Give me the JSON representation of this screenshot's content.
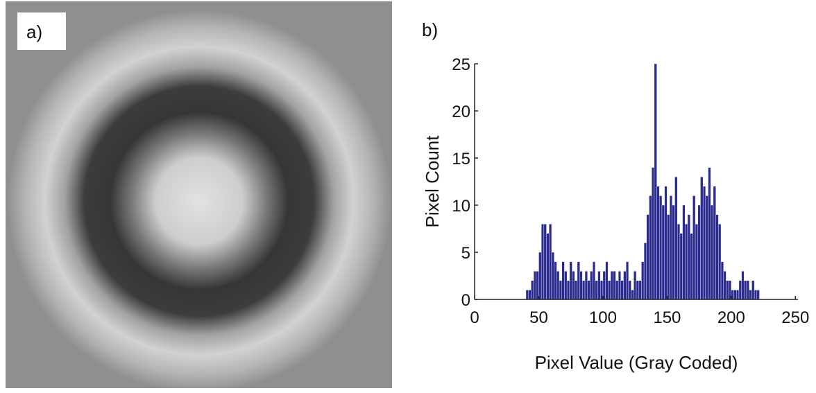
{
  "image_panel": {
    "label": "a)"
  },
  "chart_data": {
    "type": "histogram",
    "panel_label": "b)",
    "xlabel": "Pixel Value (Gray Coded)",
    "ylabel": "Pixel Count",
    "color": "#2b2b8f",
    "bins": [
      38,
      40,
      42,
      44,
      46,
      48,
      50,
      52,
      54,
      56,
      58,
      60,
      62,
      64,
      66,
      68,
      70,
      72,
      74,
      76,
      78,
      80,
      82,
      84,
      86,
      88,
      90,
      92,
      94,
      96,
      98,
      100,
      102,
      104,
      106,
      108,
      110,
      112,
      114,
      116,
      118,
      120,
      122,
      124,
      126,
      128,
      130,
      132,
      134,
      136,
      138,
      140,
      142,
      144,
      146,
      148,
      150,
      152,
      154,
      156,
      158,
      160,
      162,
      164,
      166,
      168,
      170,
      172,
      174,
      176,
      178,
      180,
      182,
      184,
      186,
      188,
      190,
      192,
      194,
      196,
      198,
      200,
      202,
      204,
      206,
      208,
      210,
      212,
      214,
      216,
      218,
      220,
      222,
      224
    ],
    "values": [
      0,
      1,
      1,
      2,
      3,
      3,
      5,
      8,
      8,
      7,
      8,
      5,
      4,
      3,
      2,
      4,
      3,
      2,
      4,
      3,
      2,
      4,
      3,
      2,
      3,
      2,
      3,
      4,
      2,
      3,
      2,
      3,
      4,
      2,
      3,
      3,
      2,
      3,
      2,
      3,
      4,
      2,
      1,
      3,
      2,
      2,
      4,
      6,
      9,
      11,
      14,
      25,
      12,
      11,
      10,
      12,
      9,
      11,
      10,
      13,
      8,
      7,
      10,
      8,
      9,
      7,
      11,
      8,
      10,
      13,
      12,
      11,
      14,
      10,
      12,
      9,
      8,
      4,
      3,
      2,
      2,
      1,
      1,
      1,
      2,
      3,
      2,
      2,
      1,
      2,
      1,
      1,
      0
    ],
    "xlim": [
      0,
      252
    ],
    "ylim": [
      0,
      25
    ],
    "xticks": [
      0,
      50,
      100,
      150,
      200,
      250
    ],
    "yticks": [
      0,
      5,
      10,
      15,
      20,
      25
    ]
  }
}
